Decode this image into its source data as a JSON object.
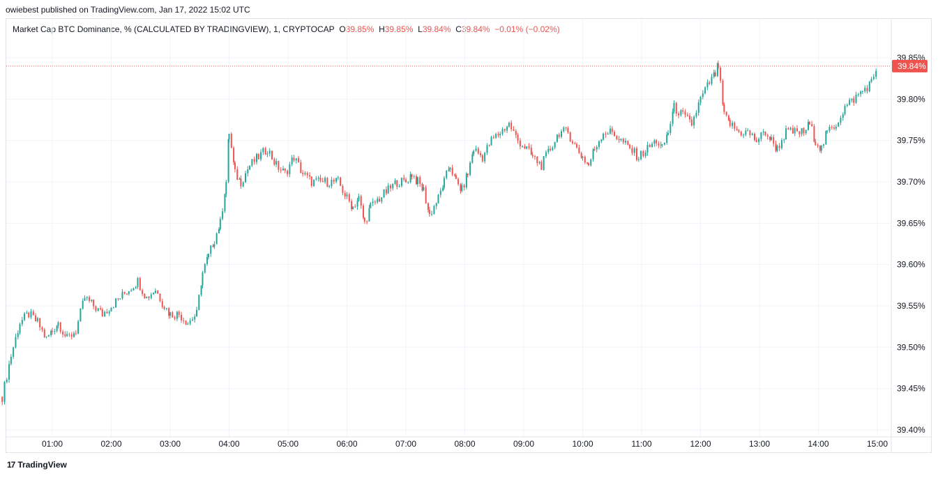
{
  "header": {
    "published_line": "owiebest published on TradingView.com, Jan 17, 2022 15:02 UTC"
  },
  "legend": {
    "symbol": "Market Cap BTC Dominance, % (CALCULATED BY TRADINGVIEW), 1, CRYPTOCAP",
    "o_label": "O",
    "o_value": "39.85%",
    "h_label": "H",
    "h_value": "39.85%",
    "l_label": "L",
    "l_value": "39.84%",
    "c_label": "C",
    "c_value": "39.84%",
    "change": "−0.01% (−0.02%)"
  },
  "price_tag": "39.84%",
  "footer": {
    "brand": "TradingView",
    "brand_icon": "17"
  },
  "colors": {
    "up": "#26a69a",
    "down": "#ef5350",
    "grid": "#f0f3fa",
    "text": "#131722"
  },
  "chart_data": {
    "type": "candlestick",
    "y_ticks": [
      "39.85%",
      "39.80%",
      "39.75%",
      "39.70%",
      "39.65%",
      "39.60%",
      "39.55%",
      "39.50%",
      "39.45%",
      "39.40%"
    ],
    "x_ticks": [
      "01:00",
      "02:00",
      "03:00",
      "04:00",
      "05:00",
      "06:00",
      "07:00",
      "08:00",
      "09:00",
      "10:00",
      "11:00",
      "12:00",
      "13:00",
      "14:00",
      "15:00"
    ],
    "ylim": [
      39.4,
      39.85
    ],
    "last_price": 39.84,
    "series": [
      {
        "t": 0.15,
        "c": 39.44
      },
      {
        "t": 0.3,
        "c": 39.49
      },
      {
        "t": 0.45,
        "c": 39.53
      },
      {
        "t": 0.6,
        "c": 39.54
      },
      {
        "t": 0.75,
        "c": 39.53
      },
      {
        "t": 0.9,
        "c": 39.51
      },
      {
        "t": 1.0,
        "c": 39.52
      },
      {
        "t": 1.1,
        "c": 39.53
      },
      {
        "t": 1.25,
        "c": 39.51
      },
      {
        "t": 1.4,
        "c": 39.52
      },
      {
        "t": 1.55,
        "c": 39.56
      },
      {
        "t": 1.7,
        "c": 39.55
      },
      {
        "t": 1.85,
        "c": 39.54
      },
      {
        "t": 2.0,
        "c": 39.55
      },
      {
        "t": 2.15,
        "c": 39.56
      },
      {
        "t": 2.3,
        "c": 39.57
      },
      {
        "t": 2.45,
        "c": 39.58
      },
      {
        "t": 2.6,
        "c": 39.56
      },
      {
        "t": 2.75,
        "c": 39.57
      },
      {
        "t": 2.9,
        "c": 39.55
      },
      {
        "t": 3.0,
        "c": 39.54
      },
      {
        "t": 3.15,
        "c": 39.54
      },
      {
        "t": 3.3,
        "c": 39.53
      },
      {
        "t": 3.45,
        "c": 39.54
      },
      {
        "t": 3.55,
        "c": 39.59
      },
      {
        "t": 3.65,
        "c": 39.61
      },
      {
        "t": 3.75,
        "c": 39.63
      },
      {
        "t": 3.85,
        "c": 39.65
      },
      {
        "t": 3.95,
        "c": 39.7
      },
      {
        "t": 4.0,
        "c": 39.76
      },
      {
        "t": 4.1,
        "c": 39.71
      },
      {
        "t": 4.2,
        "c": 39.7
      },
      {
        "t": 4.35,
        "c": 39.72
      },
      {
        "t": 4.5,
        "c": 39.73
      },
      {
        "t": 4.65,
        "c": 39.74
      },
      {
        "t": 4.8,
        "c": 39.72
      },
      {
        "t": 4.95,
        "c": 39.71
      },
      {
        "t": 5.1,
        "c": 39.73
      },
      {
        "t": 5.25,
        "c": 39.71
      },
      {
        "t": 5.4,
        "c": 39.7
      },
      {
        "t": 5.55,
        "c": 39.7
      },
      {
        "t": 5.7,
        "c": 39.7
      },
      {
        "t": 5.85,
        "c": 39.7
      },
      {
        "t": 6.0,
        "c": 39.68
      },
      {
        "t": 6.1,
        "c": 39.67
      },
      {
        "t": 6.2,
        "c": 39.68
      },
      {
        "t": 6.3,
        "c": 39.65
      },
      {
        "t": 6.4,
        "c": 39.67
      },
      {
        "t": 6.55,
        "c": 39.68
      },
      {
        "t": 6.7,
        "c": 39.69
      },
      {
        "t": 6.85,
        "c": 39.7
      },
      {
        "t": 7.0,
        "c": 39.7
      },
      {
        "t": 7.1,
        "c": 39.71
      },
      {
        "t": 7.2,
        "c": 39.7
      },
      {
        "t": 7.3,
        "c": 39.69
      },
      {
        "t": 7.4,
        "c": 39.66
      },
      {
        "t": 7.55,
        "c": 39.68
      },
      {
        "t": 7.65,
        "c": 39.7
      },
      {
        "t": 7.75,
        "c": 39.72
      },
      {
        "t": 7.85,
        "c": 39.7
      },
      {
        "t": 7.95,
        "c": 39.69
      },
      {
        "t": 8.05,
        "c": 39.71
      },
      {
        "t": 8.15,
        "c": 39.74
      },
      {
        "t": 8.3,
        "c": 39.73
      },
      {
        "t": 8.45,
        "c": 39.75
      },
      {
        "t": 8.6,
        "c": 39.76
      },
      {
        "t": 8.75,
        "c": 39.77
      },
      {
        "t": 8.9,
        "c": 39.75
      },
      {
        "t": 9.05,
        "c": 39.74
      },
      {
        "t": 9.15,
        "c": 39.73
      },
      {
        "t": 9.3,
        "c": 39.72
      },
      {
        "t": 9.45,
        "c": 39.74
      },
      {
        "t": 9.6,
        "c": 39.76
      },
      {
        "t": 9.75,
        "c": 39.76
      },
      {
        "t": 9.9,
        "c": 39.74
      },
      {
        "t": 10.0,
        "c": 39.73
      },
      {
        "t": 10.1,
        "c": 39.72
      },
      {
        "t": 10.2,
        "c": 39.74
      },
      {
        "t": 10.35,
        "c": 39.76
      },
      {
        "t": 10.5,
        "c": 39.76
      },
      {
        "t": 10.65,
        "c": 39.75
      },
      {
        "t": 10.8,
        "c": 39.74
      },
      {
        "t": 10.95,
        "c": 39.73
      },
      {
        "t": 11.1,
        "c": 39.74
      },
      {
        "t": 11.25,
        "c": 39.75
      },
      {
        "t": 11.35,
        "c": 39.74
      },
      {
        "t": 11.45,
        "c": 39.76
      },
      {
        "t": 11.55,
        "c": 39.79
      },
      {
        "t": 11.7,
        "c": 39.78
      },
      {
        "t": 11.85,
        "c": 39.77
      },
      {
        "t": 12.0,
        "c": 39.8
      },
      {
        "t": 12.15,
        "c": 39.82
      },
      {
        "t": 12.25,
        "c": 39.83
      },
      {
        "t": 12.3,
        "c": 39.84
      },
      {
        "t": 12.4,
        "c": 39.78
      },
      {
        "t": 12.5,
        "c": 39.77
      },
      {
        "t": 12.65,
        "c": 39.76
      },
      {
        "t": 12.8,
        "c": 39.76
      },
      {
        "t": 12.95,
        "c": 39.75
      },
      {
        "t": 13.1,
        "c": 39.76
      },
      {
        "t": 13.2,
        "c": 39.75
      },
      {
        "t": 13.3,
        "c": 39.74
      },
      {
        "t": 13.45,
        "c": 39.76
      },
      {
        "t": 13.6,
        "c": 39.76
      },
      {
        "t": 13.75,
        "c": 39.76
      },
      {
        "t": 13.85,
        "c": 39.77
      },
      {
        "t": 13.95,
        "c": 39.75
      },
      {
        "t": 14.05,
        "c": 39.74
      },
      {
        "t": 14.15,
        "c": 39.76
      },
      {
        "t": 14.3,
        "c": 39.77
      },
      {
        "t": 14.45,
        "c": 39.79
      },
      {
        "t": 14.6,
        "c": 39.8
      },
      {
        "t": 14.75,
        "c": 39.81
      },
      {
        "t": 14.9,
        "c": 39.82
      },
      {
        "t": 15.0,
        "c": 39.84
      }
    ]
  }
}
